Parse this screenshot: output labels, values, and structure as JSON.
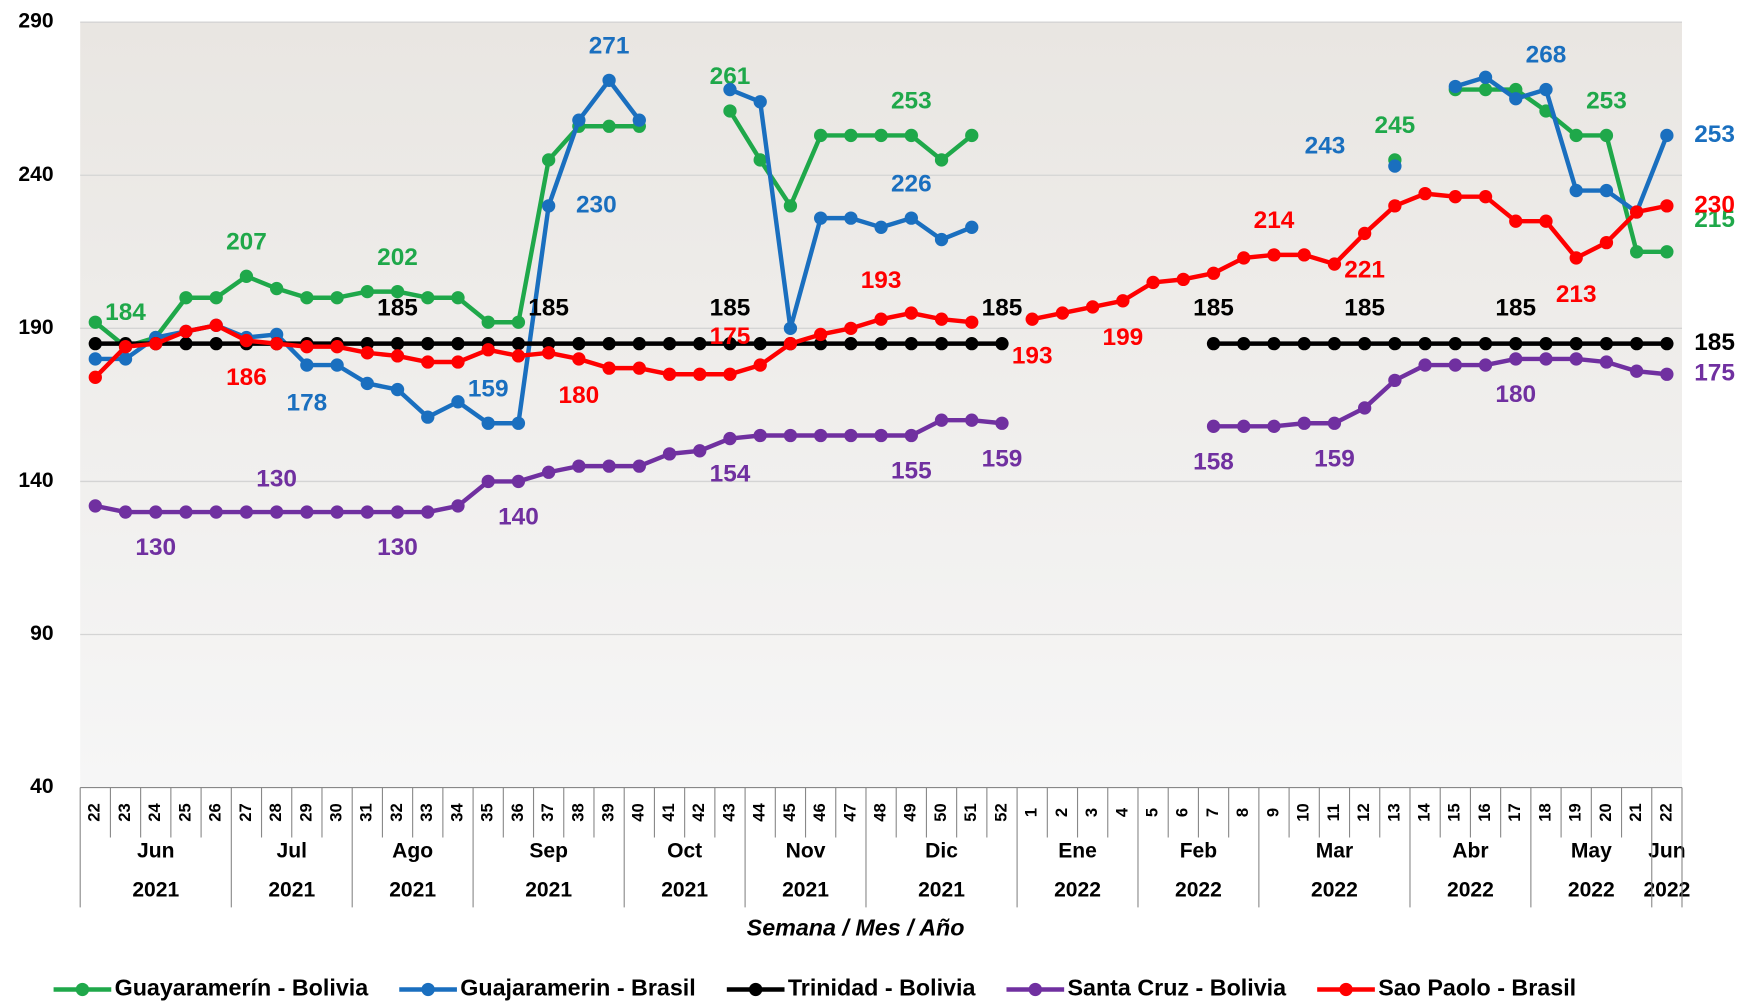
{
  "chart_data": {
    "type": "line",
    "x_label": "Semana / Mes / Año",
    "categories": [
      "22",
      "23",
      "24",
      "25",
      "26",
      "27",
      "28",
      "29",
      "30",
      "31",
      "32",
      "33",
      "34",
      "35",
      "36",
      "37",
      "38",
      "39",
      "40",
      "41",
      "42",
      "43",
      "44",
      "45",
      "46",
      "47",
      "48",
      "49",
      "50",
      "51",
      "52",
      "1",
      "2",
      "3",
      "4",
      "5",
      "6",
      "7",
      "8",
      "9",
      "10",
      "11",
      "12",
      "13",
      "14",
      "15",
      "16",
      "17",
      "18",
      "19",
      "20",
      "21",
      "22"
    ],
    "months": [
      "Jun",
      "Jun",
      "Jun",
      "Jun",
      "Jun",
      "Jul",
      "Jul",
      "Jul",
      "Jul",
      "Ago",
      "Ago",
      "Ago",
      "Ago",
      "Sep",
      "Sep",
      "Sep",
      "Sep",
      "Sep",
      "Oct",
      "Oct",
      "Oct",
      "Oct",
      "Nov",
      "Nov",
      "Nov",
      "Nov",
      "Dic",
      "Dic",
      "Dic",
      "Dic",
      "Dic",
      "Ene",
      "Ene",
      "Ene",
      "Ene",
      "Feb",
      "Feb",
      "Feb",
      "Feb",
      "Mar",
      "Mar",
      "Mar",
      "Mar",
      "Mar",
      "Abr",
      "Abr",
      "Abr",
      "Abr",
      "May",
      "May",
      "May",
      "May",
      "Jun"
    ],
    "years": [
      "2021",
      "2021",
      "2021",
      "2021",
      "2021",
      "2021",
      "2021",
      "2021",
      "2021",
      "2021",
      "2021",
      "2021",
      "2021",
      "2021",
      "2021",
      "2021",
      "2021",
      "2021",
      "2021",
      "2021",
      "2021",
      "2021",
      "2021",
      "2021",
      "2021",
      "2021",
      "2021",
      "2021",
      "2021",
      "2021",
      "2021",
      "2022",
      "2022",
      "2022",
      "2022",
      "2022",
      "2022",
      "2022",
      "2022",
      "2022",
      "2022",
      "2022",
      "2022",
      "2022",
      "2022",
      "2022",
      "2022",
      "2022",
      "2022",
      "2022",
      "2022",
      "2022",
      "2022"
    ],
    "ylim": [
      40,
      290
    ],
    "yticks": [
      40,
      90,
      140,
      190,
      240,
      290
    ],
    "grid": true,
    "legend": "bottom",
    "series": [
      {
        "name": "Guayaramerín - Bolivia",
        "color": "#1fa84a",
        "values": [
          192,
          184,
          187,
          200,
          200,
          207,
          203,
          200,
          200,
          202,
          202,
          200,
          200,
          192,
          192,
          245,
          256,
          256,
          256,
          null,
          null,
          261,
          245,
          230,
          253,
          253,
          253,
          253,
          245,
          253,
          null,
          null,
          null,
          null,
          null,
          null,
          null,
          null,
          null,
          null,
          null,
          null,
          null,
          245,
          null,
          268,
          268,
          268,
          261,
          253,
          253,
          215,
          215
        ],
        "value_labels": [
          null,
          "184",
          null,
          null,
          null,
          "207",
          null,
          null,
          null,
          null,
          "202",
          null,
          null,
          null,
          null,
          null,
          null,
          null,
          null,
          null,
          null,
          "261",
          null,
          null,
          null,
          null,
          null,
          "253",
          null,
          null,
          null,
          null,
          null,
          null,
          null,
          null,
          null,
          null,
          null,
          null,
          null,
          null,
          null,
          "245",
          null,
          null,
          null,
          null,
          null,
          null,
          "253",
          null,
          "215"
        ]
      },
      {
        "name": "Guajaramerin - Brasil",
        "color": "#1a6fbf",
        "values": [
          180,
          180,
          187,
          189,
          191,
          187,
          188,
          178,
          178,
          172,
          170,
          161,
          166,
          159,
          159,
          230,
          258,
          271,
          258,
          null,
          null,
          268,
          264,
          190,
          226,
          226,
          223,
          226,
          219,
          223,
          null,
          null,
          null,
          null,
          null,
          null,
          null,
          null,
          null,
          null,
          null,
          null,
          null,
          243,
          null,
          269,
          272,
          265,
          268,
          235,
          235,
          228,
          253
        ],
        "value_labels": [
          null,
          null,
          null,
          null,
          null,
          null,
          null,
          "178",
          null,
          null,
          null,
          null,
          null,
          "159",
          null,
          "230",
          null,
          "271",
          null,
          null,
          null,
          null,
          null,
          null,
          null,
          null,
          null,
          "226",
          null,
          null,
          null,
          null,
          null,
          null,
          null,
          null,
          null,
          null,
          null,
          null,
          null,
          null,
          null,
          "243",
          null,
          null,
          null,
          null,
          "268",
          null,
          null,
          null,
          "253"
        ]
      },
      {
        "name": "Trinidad - Bolivia",
        "color": "#000000",
        "values": [
          185,
          185,
          185,
          185,
          185,
          185,
          185,
          185,
          185,
          185,
          185,
          185,
          185,
          185,
          185,
          185,
          185,
          185,
          185,
          185,
          185,
          185,
          185,
          185,
          185,
          185,
          185,
          185,
          185,
          185,
          185,
          null,
          null,
          null,
          null,
          null,
          null,
          185,
          185,
          185,
          185,
          185,
          185,
          185,
          185,
          185,
          185,
          185,
          185,
          185,
          185,
          185,
          185
        ],
        "value_labels": [
          null,
          null,
          null,
          null,
          null,
          null,
          null,
          null,
          null,
          null,
          "185",
          null,
          null,
          null,
          null,
          "185",
          null,
          null,
          null,
          null,
          null,
          "185",
          null,
          null,
          null,
          null,
          null,
          null,
          null,
          null,
          "185",
          null,
          null,
          null,
          null,
          null,
          null,
          "185",
          null,
          null,
          null,
          null,
          "185",
          null,
          null,
          null,
          null,
          "185",
          null,
          null,
          null,
          null,
          "185"
        ]
      },
      {
        "name": "Santa Cruz - Bolivia",
        "color": "#7030a0",
        "values": [
          132,
          130,
          130,
          130,
          130,
          130,
          130,
          130,
          130,
          130,
          130,
          130,
          132,
          140,
          140,
          143,
          145,
          145,
          145,
          149,
          150,
          154,
          155,
          155,
          155,
          155,
          155,
          155,
          160,
          160,
          159,
          null,
          null,
          null,
          null,
          null,
          null,
          158,
          158,
          158,
          159,
          159,
          164,
          173,
          178,
          178,
          178,
          180,
          180,
          180,
          179,
          176,
          175
        ],
        "value_labels": [
          null,
          null,
          "130",
          null,
          null,
          null,
          "130",
          null,
          null,
          null,
          "130",
          null,
          null,
          null,
          "140",
          null,
          null,
          null,
          null,
          null,
          null,
          "154",
          null,
          null,
          null,
          null,
          null,
          "155",
          null,
          null,
          "159",
          null,
          null,
          null,
          null,
          null,
          null,
          "158",
          null,
          null,
          null,
          "159",
          null,
          null,
          null,
          null,
          null,
          "180",
          null,
          null,
          null,
          null,
          "175"
        ]
      },
      {
        "name": "Sao Paolo - Brasil",
        "color": "#ff0000",
        "values": [
          174,
          184,
          185,
          189,
          191,
          186,
          185,
          184,
          184,
          182,
          181,
          179,
          179,
          183,
          181,
          182,
          180,
          177,
          177,
          175,
          175,
          175,
          178,
          185,
          188,
          190,
          193,
          195,
          193,
          192,
          null,
          193,
          195,
          197,
          199,
          205,
          206,
          208,
          213,
          214,
          214,
          211,
          221,
          230,
          234,
          233,
          233,
          225,
          225,
          213,
          218,
          228,
          230
        ],
        "value_labels": [
          null,
          null,
          null,
          null,
          null,
          "186",
          null,
          null,
          null,
          null,
          null,
          null,
          null,
          null,
          null,
          null,
          "180",
          null,
          null,
          null,
          null,
          "175",
          null,
          null,
          null,
          null,
          "193",
          null,
          null,
          null,
          null,
          "193",
          null,
          null,
          "199",
          null,
          null,
          null,
          null,
          "214",
          null,
          null,
          "221",
          null,
          null,
          null,
          null,
          null,
          null,
          "213",
          null,
          null,
          "230"
        ]
      }
    ]
  }
}
